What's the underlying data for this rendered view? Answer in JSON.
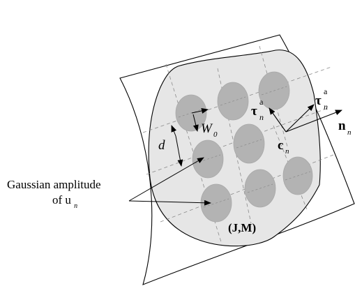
{
  "labels": {
    "caption_line1": "Gaussian amplitude",
    "caption_line2_prefix": "of u",
    "caption_line2_sub": "n",
    "beam_width": "W",
    "beam_width_sub": "0",
    "spacing": "d",
    "tau_a_left": "τ",
    "tau_a_left_sup": "a",
    "tau_a_left_sub": "n",
    "tau_a_right": "τ",
    "tau_a_right_sup": "a",
    "tau_a_right_sub": "n",
    "center": "c",
    "center_sub": "n",
    "normal": "n",
    "normal_sub": "n",
    "currents": "(J,M)"
  },
  "colors": {
    "aperture_fill": "#e6e6e6",
    "gaussian_fill": "#b3b3b3",
    "grid_line": "#8a8a8a",
    "ink": "#000000"
  }
}
